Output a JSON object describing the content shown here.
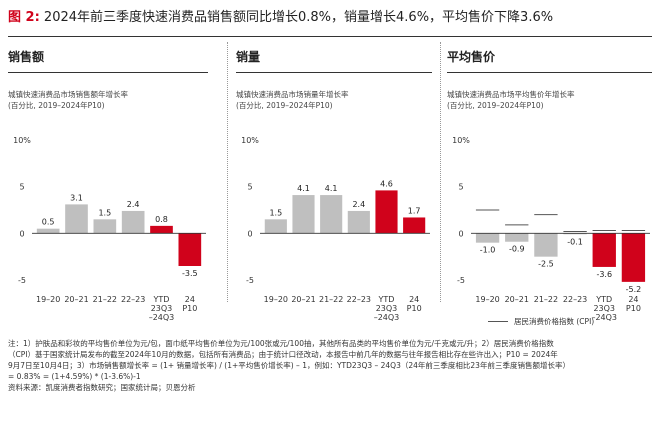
{
  "figure": {
    "label": "图 2:",
    "title": "2024年前三季度快速消费品销售额同比增长0.8%，销量增长4.6%，平均售价下降3.6%"
  },
  "colors": {
    "gray": "#bfbfbf",
    "red": "#d0021b",
    "cpi": "#555555"
  },
  "legend": {
    "cpi": "居民消费价格指数 (CPI)"
  },
  "notes": {
    "line1": "注：1）护肤品和彩妆的平均售价单位为元/包，面巾纸平均售价单位为元/100张或元/100抽，其他所有品类的平均售价单位为元/千克或元/升；2）居民消费价格指数",
    "line2": "（CPI）基于国家统计局发布的截至2024年10月的数据，包括所有消费品；由于统计口径改动，本报告中前几年的数据与往年报告相比存在些许出入；P10 = 2024年",
    "line3": "9月7日至10月4日；3）市场销售额增长率 = (1+ 销量增长率) / (1+平均售价增长率) – 1，例如：YTD23Q3 – 24Q3（24年前三季度相比23年前三季度销售额增长率）",
    "line4": "= 0.83% = (1+4.59%) * (1-3.6%)-1",
    "line5": "资料来源：凯度消费者指数研究；国家统计局；贝恩分析"
  },
  "panels": [
    {
      "title": "销售额",
      "subtitle1": "城镇快速消费品市场销售额年增长率",
      "subtitle2": "(百分比, 2019–2024年P10)"
    },
    {
      "title": "销量",
      "subtitle1": "城镇快速消费品市场销量年增长率",
      "subtitle2": "(百分比, 2019–2024年P10)"
    },
    {
      "title": "平均售价",
      "subtitle1": "城镇快速消费品市场平均售价年增长率",
      "subtitle2": "(百分比, 2019–2024年P10)"
    }
  ],
  "chart_data": [
    {
      "type": "bar",
      "title": "销售额",
      "categories": [
        [
          "19–20"
        ],
        [
          "20–21"
        ],
        [
          "21–22"
        ],
        [
          "22–23"
        ],
        [
          "YTD",
          "23Q3",
          "–24Q3"
        ],
        [
          "24",
          "P10"
        ]
      ],
      "values": [
        0.5,
        3.1,
        1.5,
        2.4,
        0.8,
        -3.5
      ],
      "value_labels": [
        "0.5",
        "3.1",
        "1.5",
        "2.4",
        "0.8",
        "-3.5"
      ],
      "bar_colors": [
        "gray",
        "gray",
        "gray",
        "gray",
        "red",
        "red"
      ],
      "ylim": [
        -5,
        10
      ],
      "yticks": [
        10,
        5,
        0,
        -5
      ],
      "ytick_labels": [
        "10%",
        "5",
        "0",
        "-5"
      ]
    },
    {
      "type": "bar",
      "title": "销量",
      "categories": [
        [
          "19–20"
        ],
        [
          "20–21"
        ],
        [
          "21–22"
        ],
        [
          "22–23"
        ],
        [
          "YTD",
          "23Q3",
          "–24Q3"
        ],
        [
          "24",
          "P10"
        ]
      ],
      "values": [
        1.5,
        4.1,
        4.1,
        2.4,
        4.6,
        1.7
      ],
      "value_labels": [
        "1.5",
        "4.1",
        "4.1",
        "2.4",
        "4.6",
        "1.7"
      ],
      "bar_colors": [
        "gray",
        "gray",
        "gray",
        "gray",
        "red",
        "red"
      ],
      "ylim": [
        -5,
        10
      ],
      "yticks": [
        10,
        5,
        0,
        -5
      ],
      "ytick_labels": [
        "10%",
        "5",
        "0",
        "-5"
      ]
    },
    {
      "type": "bar",
      "title": "平均售价",
      "categories": [
        [
          "19–20"
        ],
        [
          "20–21"
        ],
        [
          "21–22"
        ],
        [
          "22–23"
        ],
        [
          "YTD",
          "23Q3",
          "–24Q3"
        ],
        [
          "24",
          "P10"
        ]
      ],
      "values": [
        -1.0,
        -0.9,
        -2.5,
        -0.1,
        -3.6,
        -5.2
      ],
      "value_labels": [
        "-1.0",
        "-0.9",
        "-2.5",
        "-0.1",
        "-3.6",
        "-5.2"
      ],
      "bar_colors": [
        "gray",
        "gray",
        "gray",
        "gray",
        "red",
        "red"
      ],
      "cpi": [
        2.5,
        0.9,
        2.0,
        0.2,
        0.3,
        0.3
      ],
      "ylim": [
        -5,
        10
      ],
      "yticks": [
        10,
        5,
        0,
        -5
      ],
      "ytick_labels": [
        "10%",
        "5",
        "0",
        "-5"
      ]
    }
  ]
}
